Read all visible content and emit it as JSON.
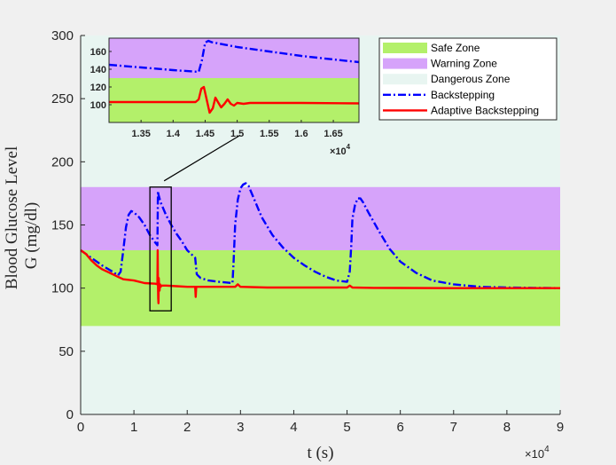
{
  "chart_data": {
    "type": "line",
    "xlabel": "t (s)",
    "ylabel_line1": "Blood Glucose Level",
    "ylabel_line2": "G (mg/dl)",
    "x_multiplier_base": "×10",
    "x_multiplier_exp": "4",
    "xlim": [
      0,
      90000
    ],
    "ylim": [
      0,
      300
    ],
    "xticks": [
      0,
      10000,
      20000,
      30000,
      40000,
      50000,
      60000,
      70000,
      80000,
      90000
    ],
    "xtick_labels": [
      "0",
      "1",
      "2",
      "3",
      "4",
      "5",
      "6",
      "7",
      "8",
      "9"
    ],
    "yticks": [
      0,
      50,
      100,
      150,
      200,
      250,
      300
    ],
    "ytick_labels": [
      "0",
      "50",
      "100",
      "150",
      "200",
      "250",
      "300"
    ],
    "zones": [
      {
        "name": "Safe Zone",
        "ymin": 70,
        "ymax": 130,
        "color": "#b3f06a"
      },
      {
        "name": "Warning Zone",
        "ymin": 130,
        "ymax": 180,
        "color": "#d6a3fa"
      },
      {
        "name": "Dangerous Zone",
        "color": "#e8f5f1"
      }
    ],
    "series": [
      {
        "name": "Backstepping",
        "color": "#0000ff",
        "style": "dash-dot",
        "x": [
          0,
          2000,
          4000,
          6000,
          7000,
          7500,
          8000,
          8500,
          9000,
          9500,
          10000,
          11000,
          12000,
          13000,
          14000,
          14400,
          14500,
          14600,
          15000,
          16000,
          17000,
          18000,
          19000,
          20000,
          21500,
          21800,
          22000,
          22500,
          24000,
          26000,
          28500,
          28700,
          29000,
          29500,
          30000,
          30500,
          31000,
          31500,
          32000,
          33000,
          34000,
          36000,
          38000,
          40000,
          42000,
          44000,
          46000,
          48000,
          50000,
          50500,
          50800,
          51000,
          51500,
          52000,
          52500,
          53000,
          54000,
          56000,
          58000,
          60000,
          63000,
          66000,
          70000,
          75000,
          80000,
          85000,
          90000
        ],
        "y": [
          130,
          124,
          118,
          113,
          110,
          113,
          130,
          148,
          158,
          161,
          160,
          156,
          150,
          142,
          136,
          134,
          177,
          174,
          168,
          158,
          150,
          143,
          137,
          130,
          124,
          111,
          110,
          108,
          106,
          105,
          104,
          120,
          150,
          170,
          179,
          182,
          183,
          181,
          176,
          166,
          156,
          142,
          132,
          124,
          118,
          113,
          109,
          106,
          105,
          113,
          135,
          155,
          166,
          171,
          171,
          168,
          160,
          145,
          131,
          121,
          112,
          106,
          103,
          101,
          100.5,
          100.2,
          100
        ]
      },
      {
        "name": "Adaptive Backstepping",
        "color": "#ff0000",
        "style": "solid",
        "x": [
          0,
          1000,
          2000,
          3000,
          4000,
          5000,
          6000,
          7000,
          8000,
          10000,
          12000,
          14000,
          14400,
          14450,
          14500,
          14550,
          14600,
          14650,
          14700,
          14800,
          14900,
          15000,
          15200,
          16000,
          18000,
          20000,
          21000,
          21500,
          21600,
          21700,
          21800,
          22000,
          24000,
          26000,
          28000,
          29000,
          29500,
          30000,
          35000,
          40000,
          45000,
          50000,
          50500,
          51000,
          55000,
          60000,
          70000,
          80000,
          90000
        ],
        "y": [
          130,
          127,
          122,
          118,
          115,
          113,
          111,
          109,
          107,
          106,
          104,
          103.5,
          103,
          130,
          105,
          92,
          88,
          108,
          104,
          98,
          103,
          101,
          102,
          102,
          101.5,
          101,
          101,
          101,
          93,
          101,
          101,
          101,
          101,
          101,
          101,
          101,
          103,
          101,
          100.5,
          100.5,
          100.5,
          100.5,
          102,
          100.5,
          100.2,
          100.1,
          100,
          100,
          100
        ]
      }
    ],
    "zoom_box": {
      "x": [
        13000,
        17000
      ],
      "y": [
        82,
        180
      ]
    },
    "inset": {
      "xlim": [
        13000,
        16900
      ],
      "ylim": [
        80,
        175
      ],
      "xticks": [
        13500,
        14000,
        14500,
        15000,
        15500,
        16000,
        16500
      ],
      "xtick_labels": [
        "1.35",
        "1.4",
        "1.45",
        "1.5",
        "1.55",
        "1.6",
        "1.65"
      ],
      "yticks": [
        100,
        120,
        140,
        160
      ],
      "ytick_labels": [
        "100",
        "120",
        "140",
        "160"
      ],
      "x_multiplier_base": "×10",
      "x_multiplier_exp": "4",
      "safe_band": [
        80,
        130
      ],
      "warning_band": [
        130,
        175
      ],
      "series": [
        {
          "name": "Backstepping",
          "x": [
            13000,
            13500,
            14000,
            14400,
            14450,
            14500,
            14550,
            14600,
            15000,
            15500,
            16000,
            16500,
            16900
          ],
          "y": [
            145,
            142,
            139,
            137,
            150,
            170,
            172,
            170.5,
            165,
            160,
            155,
            151,
            148
          ]
        },
        {
          "name": "Adaptive Backstepping",
          "x": [
            13000,
            13500,
            14000,
            14350,
            14400,
            14440,
            14480,
            14530,
            14570,
            14620,
            14660,
            14700,
            14750,
            14800,
            14850,
            14900,
            14950,
            15000,
            15100,
            15200,
            16000,
            16900
          ],
          "y": [
            103,
            103,
            103,
            103,
            106,
            118,
            120,
            104,
            91,
            96,
            108,
            103,
            97,
            101,
            106,
            101,
            99,
            102,
            101,
            102,
            102,
            101.5
          ]
        }
      ]
    },
    "legend": {
      "position": "top-right",
      "entries": [
        "Safe Zone",
        "Warning Zone",
        "Dangerous Zone",
        "Backstepping",
        "Adaptive Backstepping"
      ]
    }
  }
}
